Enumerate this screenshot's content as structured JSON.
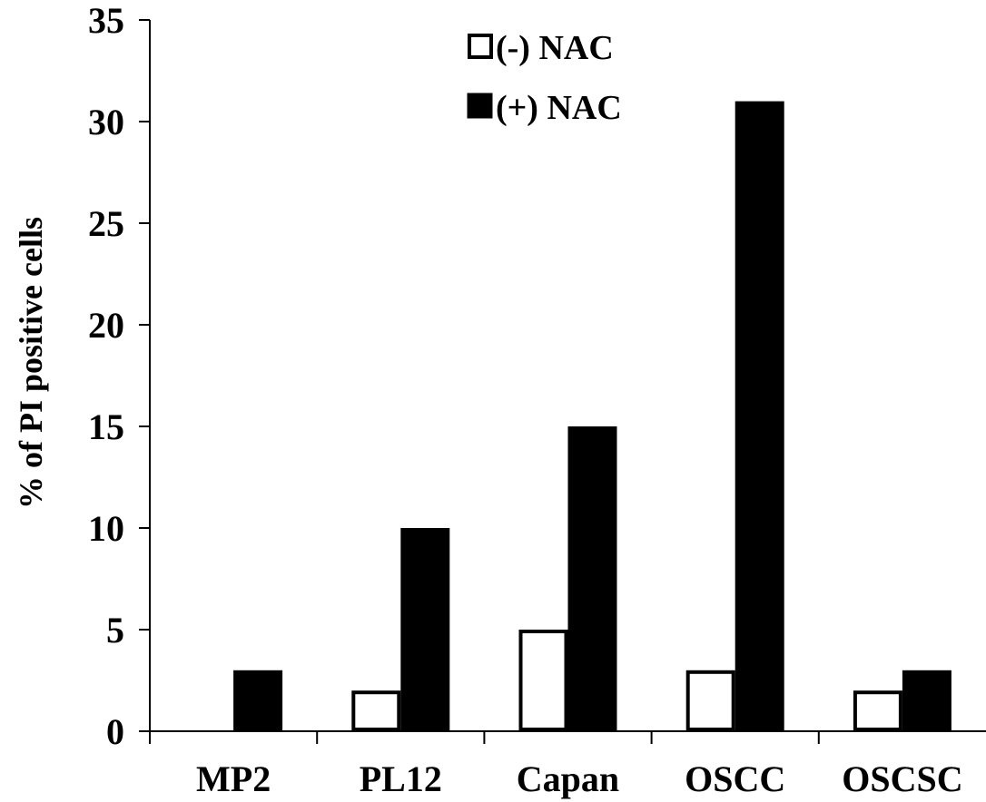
{
  "chart_data": {
    "type": "bar",
    "title": "",
    "xlabel": "",
    "ylabel": "% of PI positive cells",
    "ylim": [
      0,
      35
    ],
    "yticks": [
      0,
      5,
      10,
      15,
      20,
      25,
      30,
      35
    ],
    "categories": [
      "MP2",
      "PL12",
      "Capan",
      "OSCC",
      "OSCSC"
    ],
    "series": [
      {
        "name": "(-) NAC",
        "values": [
          0,
          2,
          5,
          3,
          2
        ],
        "fill": "#ffffff",
        "stroke": "#000000"
      },
      {
        "name": "(+) NAC",
        "values": [
          3,
          10,
          15,
          31,
          3
        ],
        "fill": "#000000",
        "stroke": "#000000"
      }
    ],
    "legend_position": "top-center",
    "grid": false
  }
}
